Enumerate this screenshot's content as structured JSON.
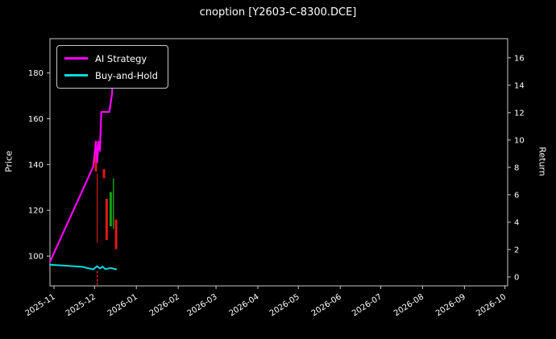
{
  "title": "cnoption [Y2603-C-8300.DCE]",
  "chart_data": {
    "type": "line",
    "title": "cnoption [Y2603-C-8300.DCE]",
    "xlabel": "",
    "ylabel_left": "Price",
    "ylabel_right": "Return",
    "background": "#000000",
    "text_color": "#ffffff",
    "spine_color": "#c8c8c8",
    "grid": false,
    "x_domain": [
      "2025-10-29",
      "2026-10-03"
    ],
    "x_tick_labels": [
      "2025-11",
      "2025-12",
      "2026-01",
      "2026-02",
      "2026-03",
      "2026-04",
      "2026-05",
      "2026-06",
      "2026-07",
      "2026-08",
      "2026-09",
      "2026-10"
    ],
    "left_ylim": [
      87,
      195
    ],
    "left_yticks": [
      100,
      120,
      140,
      160,
      180
    ],
    "right_ylim": [
      -0.65,
      17.4
    ],
    "right_yticks": [
      0,
      2,
      4,
      6,
      8,
      10,
      12,
      14,
      16
    ],
    "legend": {
      "position": "upper-left",
      "entries": [
        {
          "label": "AI Strategy",
          "color": "#ff00ff"
        },
        {
          "label": "Buy-and-Hold",
          "color": "#00dcdc"
        }
      ]
    },
    "series": [
      {
        "name": "AI Strategy",
        "color": "#ff00ff",
        "width": 2.2,
        "points": [
          [
            "2025-10-29",
            97.5
          ],
          [
            "2025-11-30",
            139
          ],
          [
            "2025-12-01",
            144
          ],
          [
            "2025-12-02",
            150
          ],
          [
            "2025-12-03",
            141
          ],
          [
            "2025-12-04",
            150
          ],
          [
            "2025-12-05",
            146
          ],
          [
            "2025-12-06",
            163
          ],
          [
            "2025-12-12",
            163
          ],
          [
            "2025-12-14",
            171
          ],
          [
            "2025-12-15",
            187
          ],
          [
            "2025-12-17",
            187
          ]
        ]
      },
      {
        "name": "Buy-and-Hold",
        "color": "#00dcdc",
        "width": 2,
        "points": [
          [
            "2025-10-29",
            96.2
          ],
          [
            "2025-11-10",
            95.8
          ],
          [
            "2025-11-22",
            95.3
          ],
          [
            "2025-11-30",
            94.2
          ],
          [
            "2025-12-03",
            95.6
          ],
          [
            "2025-12-05",
            94.6
          ],
          [
            "2025-12-07",
            95.4
          ],
          [
            "2025-12-09",
            94.3
          ],
          [
            "2025-12-13",
            94.8
          ],
          [
            "2025-12-17",
            94.2
          ]
        ]
      }
    ],
    "candles": [
      {
        "date": "2025-12-02",
        "high": 150,
        "low": 137,
        "color": "#e01818",
        "width": 3
      },
      {
        "date": "2025-12-03",
        "high": 136,
        "low": 106,
        "color": "#e01818",
        "width": 1.2
      },
      {
        "date": "2025-12-08",
        "high": 138,
        "low": 134,
        "color": "#e01818",
        "width": 3
      },
      {
        "date": "2025-12-10",
        "high": 125,
        "low": 107,
        "color": "#e01818",
        "width": 3
      },
      {
        "date": "2025-12-13",
        "high": 128,
        "low": 113,
        "color": "#14a014",
        "width": 3
      },
      {
        "date": "2025-12-15",
        "high": 134,
        "low": 112,
        "color": "#14a014",
        "width": 1.5
      },
      {
        "date": "2025-12-17",
        "high": 116,
        "low": 103,
        "color": "#e01818",
        "width": 3
      }
    ],
    "event_markers": [
      {
        "date": "2025-12-03",
        "from": 93.5,
        "to": 87.5,
        "color": "#ff2020",
        "dash": "3,2"
      }
    ]
  }
}
